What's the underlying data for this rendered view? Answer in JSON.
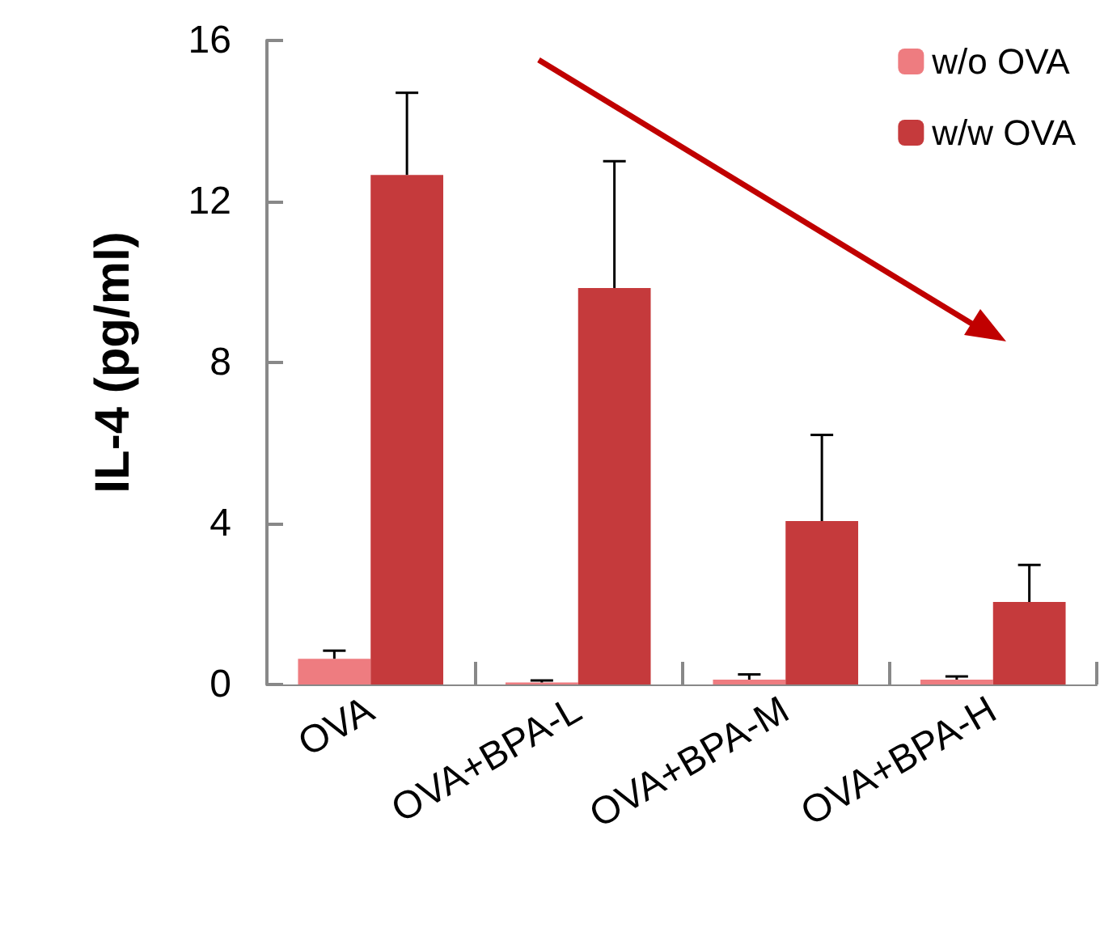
{
  "chart_data": {
    "type": "bar",
    "ylabel": "IL-4 (pg/ml)",
    "categories": [
      "OVA",
      "OVA+BPA-L",
      "OVA+BPA-M",
      "OVA+BPA-H"
    ],
    "series": [
      {
        "name": "w/o OVA",
        "color": "#ee7c80",
        "values": [
          0.64,
          0.05,
          0.12,
          0.12
        ],
        "errors": [
          [
            0.64,
            0.84
          ],
          [
            0.05,
            0.1
          ],
          [
            0.12,
            0.25
          ],
          [
            0.12,
            0.2
          ]
        ]
      },
      {
        "name": "w/w OVA",
        "color": "#c53a3c",
        "values": [
          12.66,
          9.85,
          4.06,
          2.05
        ],
        "errors": [
          [
            12.66,
            14.7
          ],
          [
            9.85,
            13.0
          ],
          [
            4.06,
            6.2
          ],
          [
            2.05,
            2.97
          ]
        ]
      }
    ],
    "ylim": [
      0,
      16
    ],
    "yticks": [
      0,
      4,
      8,
      12,
      16
    ],
    "grid": false,
    "legend": "top right"
  }
}
